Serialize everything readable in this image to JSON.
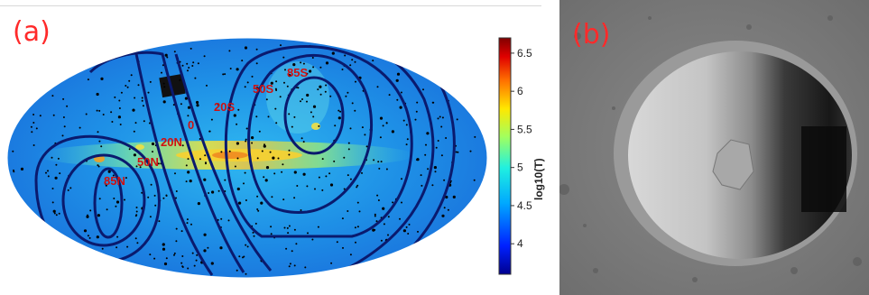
{
  "panel_a": {
    "label": "(a)",
    "contour_labels": [
      "85S",
      "50S",
      "20S",
      "0",
      "20N",
      "50N",
      "85N"
    ],
    "colorbar": {
      "title": "log10(T)",
      "ticks": [
        "6.5",
        "6",
        "5.5",
        "5",
        "4.5",
        "4"
      ],
      "range": [
        3.6,
        6.7
      ]
    }
  },
  "panel_b": {
    "label": "(b)"
  }
}
